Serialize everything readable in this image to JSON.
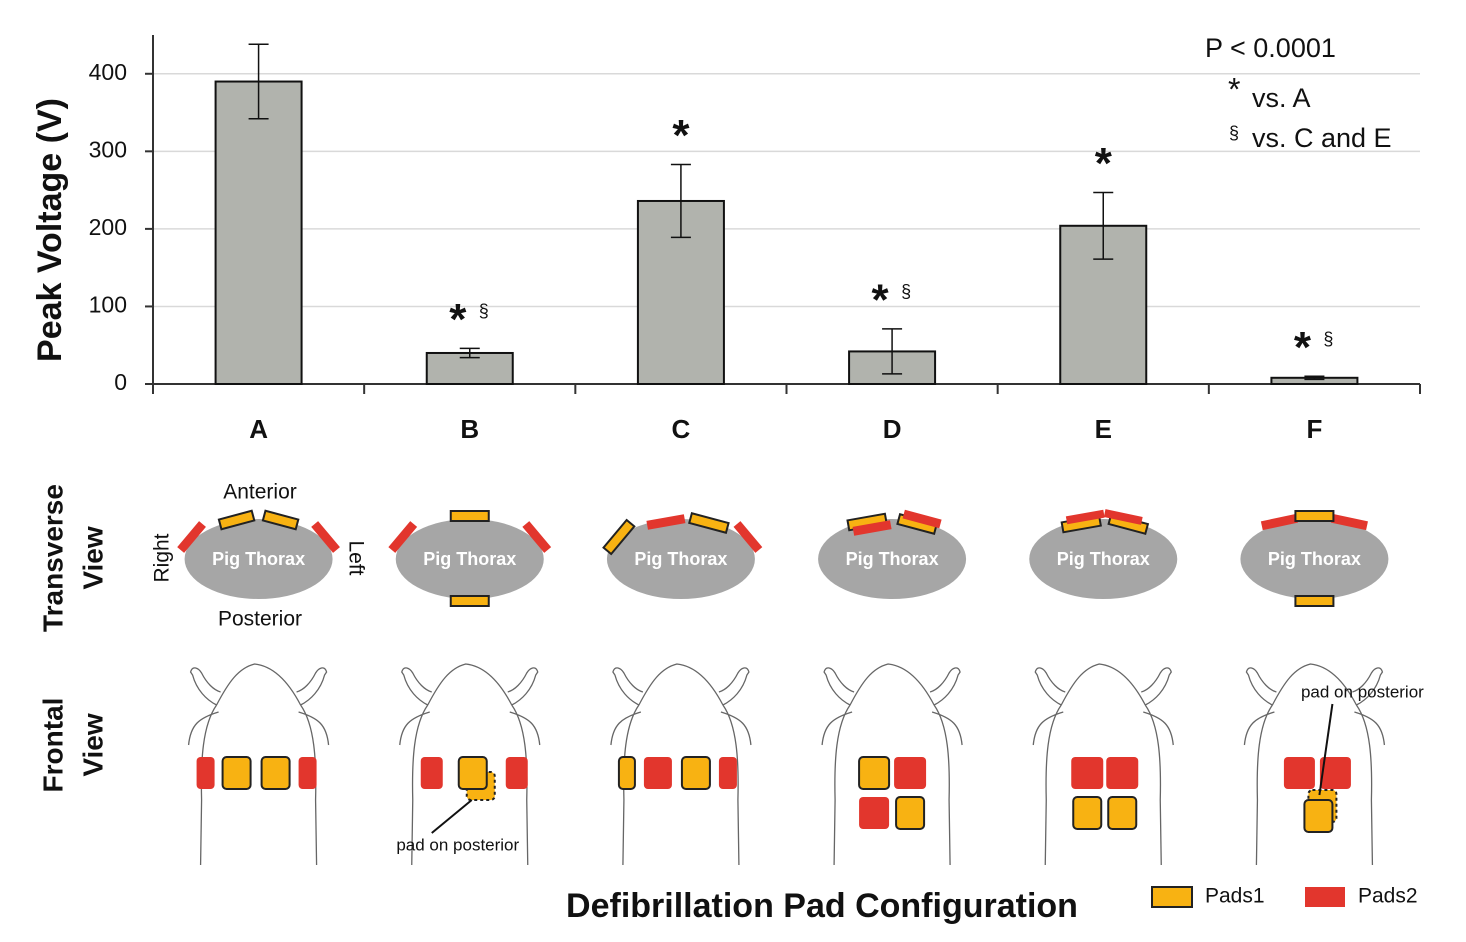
{
  "chart_data": {
    "type": "bar",
    "y_label": "Peak Voltage (V)",
    "x_label": "Defibrillation Pad Configuration",
    "categories": [
      "A",
      "B",
      "C",
      "D",
      "E",
      "F"
    ],
    "values": [
      390,
      40,
      236,
      42,
      204,
      8
    ],
    "errors": [
      48,
      6,
      47,
      29,
      43,
      2
    ],
    "color": "#b1b3ad",
    "ylim": [
      0,
      450
    ],
    "yticks": [
      0,
      100,
      200,
      300,
      400
    ],
    "grid": true,
    "significance": [
      [],
      [
        "*",
        "§"
      ],
      [
        "*"
      ],
      [
        "*",
        "§"
      ],
      [
        "*"
      ],
      [
        "*",
        "§"
      ]
    ],
    "stats_note": {
      "p": "P < 0.0001",
      "lines": [
        {
          "symbol": "*",
          "text": "vs. A"
        },
        {
          "symbol": "§",
          "text": "vs. C and E"
        }
      ]
    },
    "row_labels": [
      [
        "Transverse",
        "View"
      ],
      [
        "Frontal",
        "View"
      ]
    ],
    "thorax_label": "Pig Thorax",
    "orientation": {
      "anterior": "Anterior",
      "posterior": "Posterior",
      "right": "Right",
      "left": "Left"
    },
    "posterior_note": "pad on posterior",
    "legend": [
      {
        "name": "Pads1",
        "color": "#f8b212"
      },
      {
        "name": "Pads2",
        "color": "#e2362d"
      }
    ]
  }
}
